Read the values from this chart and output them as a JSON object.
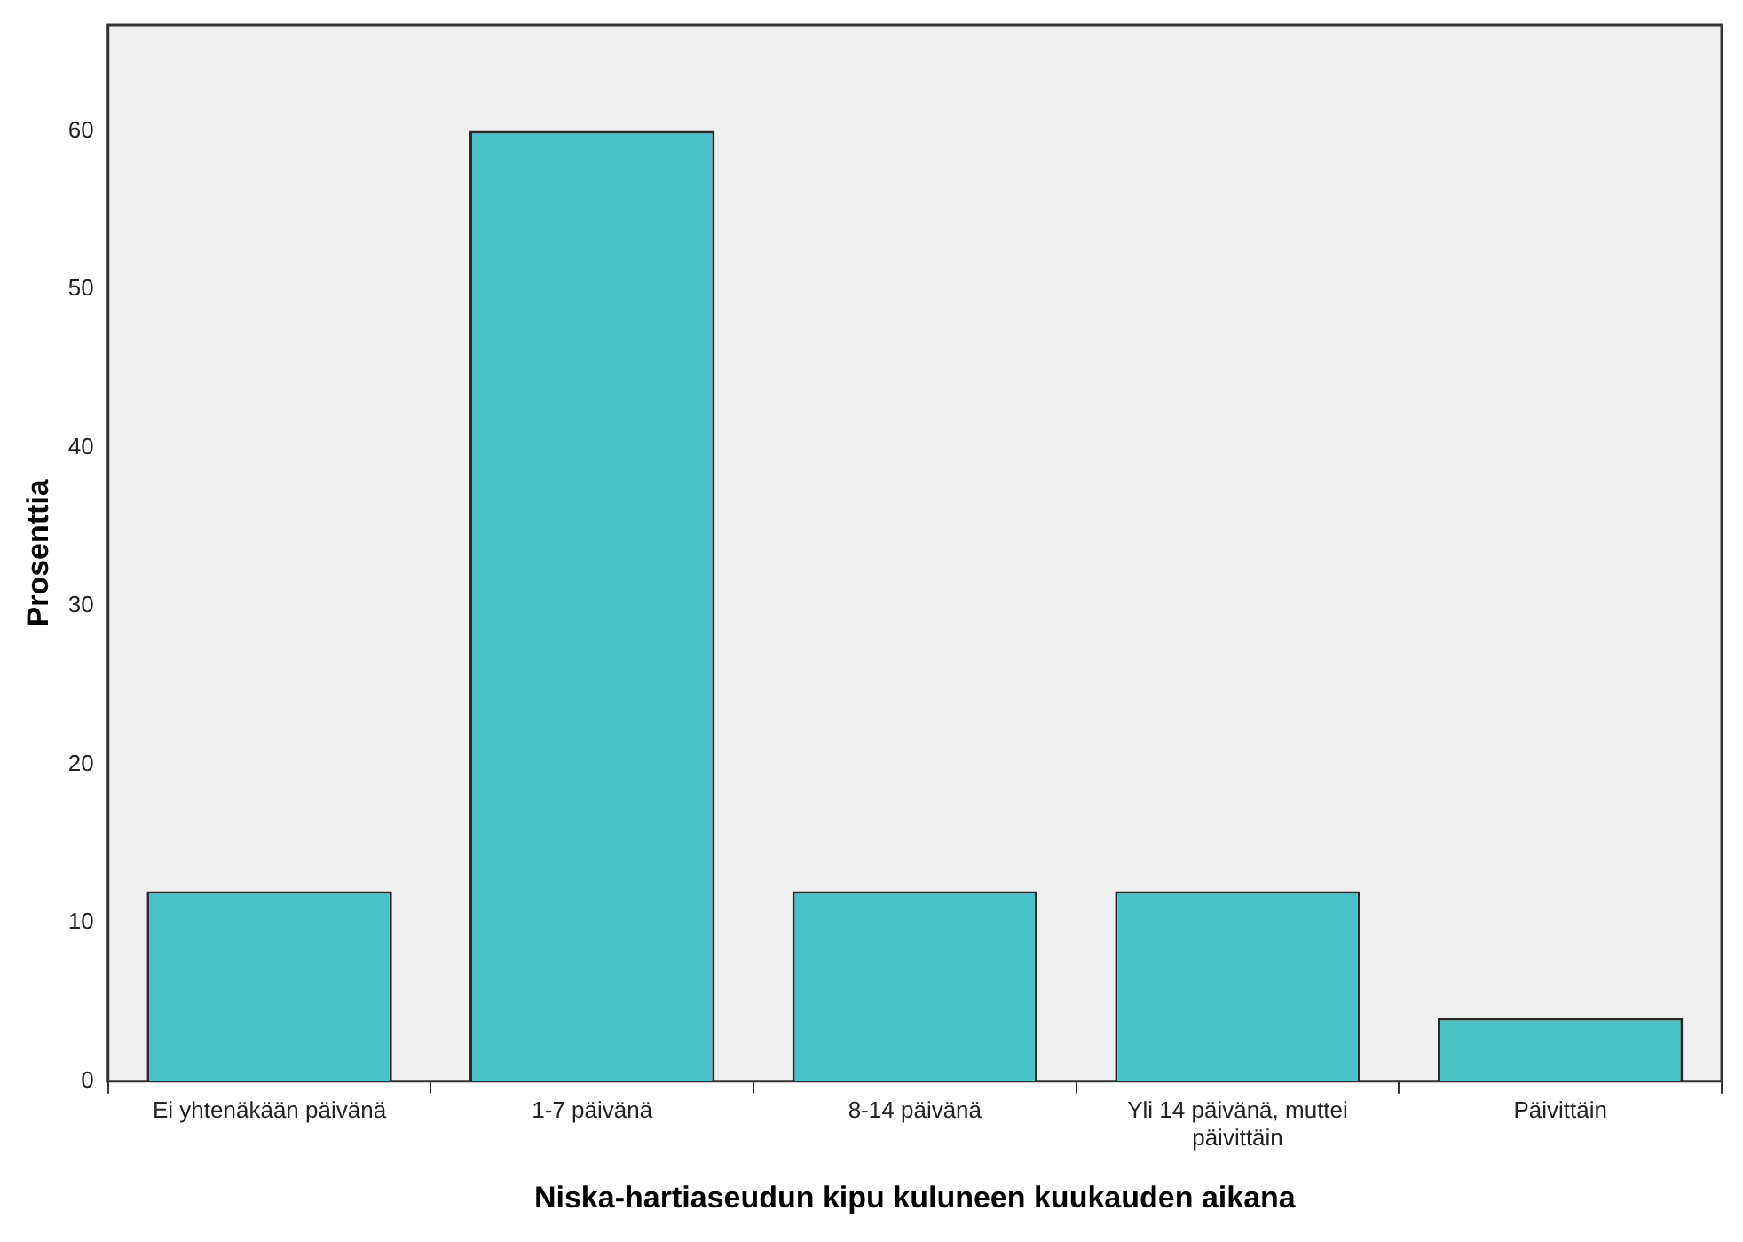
{
  "chart_data": {
    "type": "bar",
    "xlabel": "Niska-hartiaseudun kipu kuluneen kuukauden aikana",
    "ylabel": "Prosenttia",
    "categories": [
      "Ei yhtenäkään päivänä",
      "1-7 päivänä",
      "8-14 päivänä",
      "Yli 14 päivänä, muttei päivittäin",
      "Päivittäin"
    ],
    "values": [
      12,
      60,
      12,
      12,
      4
    ],
    "color": "#48c2c6",
    "ylim": [
      0,
      66.7
    ],
    "yticks": [
      0,
      10,
      20,
      30,
      40,
      50,
      60
    ],
    "grid": false,
    "legend": false
  }
}
